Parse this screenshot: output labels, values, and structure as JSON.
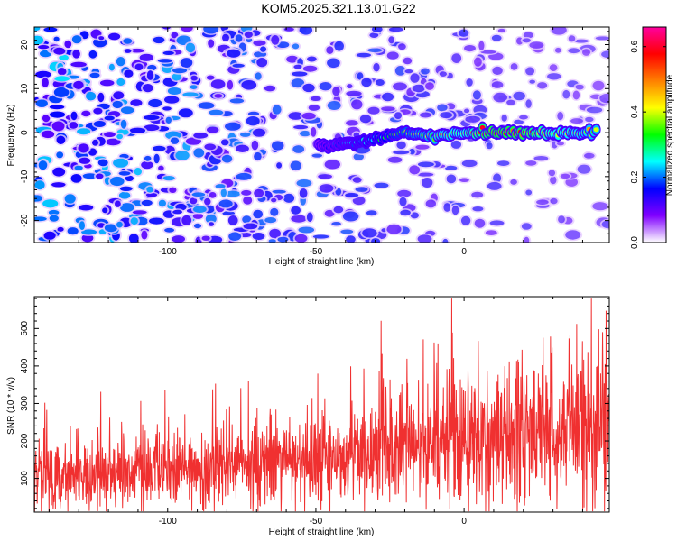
{
  "title": "KOM5.2025.321.13.01.G22",
  "chart_data": [
    {
      "type": "heatmap",
      "xlabel": "Height of straight line (km)",
      "ylabel": "Frequency (Hz)",
      "xlim": [
        -145,
        49
      ],
      "ylim": [
        -25,
        24
      ],
      "xticks": [
        -100,
        -50,
        0
      ],
      "xtick_labels": [
        "-100",
        "-50",
        "0"
      ],
      "yticks": [
        -20,
        -10,
        0,
        10,
        20
      ],
      "ytick_labels": [
        "-20",
        "-10",
        "0",
        "10",
        "20"
      ],
      "colorbar": {
        "label": "Normalized spectral amplitude",
        "range": [
          0,
          0.66
        ],
        "ticks": [
          0,
          0.2,
          0.4,
          0.6
        ],
        "tick_labels": [
          "0.0",
          "0.2",
          "0.4",
          "0.6"
        ],
        "colormap": [
          "#ffffff",
          "#8000ff",
          "#0000ff",
          "#00ffff",
          "#00ff00",
          "#ffff00",
          "#ff8000",
          "#ff0000",
          "#ff00a0"
        ]
      },
      "ridge": {
        "description_points": [
          {
            "x": -49,
            "y": -3,
            "amp": 0.15
          },
          {
            "x": -40,
            "y": -2.5,
            "amp": 0.22
          },
          {
            "x": -30,
            "y": -1.5,
            "amp": 0.3
          },
          {
            "x": -20,
            "y": 0,
            "amp": 0.38
          },
          {
            "x": -10,
            "y": -1,
            "amp": 0.45
          },
          {
            "x": 0,
            "y": 0,
            "amp": 0.5
          },
          {
            "x": 10,
            "y": 0,
            "amp": 0.62
          },
          {
            "x": 20,
            "y": 0,
            "amp": 0.6
          },
          {
            "x": 30,
            "y": 0,
            "amp": 0.5
          },
          {
            "x": 45,
            "y": 0,
            "amp": 0.45
          }
        ]
      },
      "grid": false
    },
    {
      "type": "line",
      "xlabel": "Height of straight line (km)",
      "ylabel": "SNR (10 * v/v)",
      "xlim": [
        -145,
        49
      ],
      "ylim": [
        10,
        585
      ],
      "xticks": [
        -100,
        -50,
        0
      ],
      "xtick_labels": [
        "-100",
        "-50",
        "0"
      ],
      "yticks": [
        100,
        200,
        300,
        400,
        500
      ],
      "ytick_labels": [
        "100",
        "200",
        "300",
        "400",
        "500"
      ],
      "color": "#f03030",
      "trend": {
        "x": [
          -145,
          -100,
          -50,
          0,
          49
        ],
        "y": [
          110,
          120,
          150,
          200,
          260
        ]
      },
      "grid": false
    }
  ]
}
